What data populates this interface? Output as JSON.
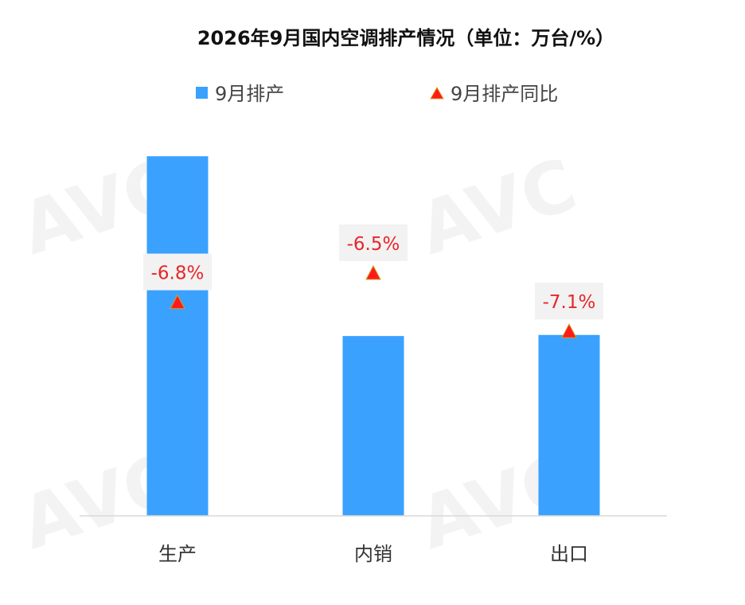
{
  "chart_data": {
    "type": "bar",
    "title": "2026年9月国内空调排产情况（单位：万台/%）",
    "categories": [
      "生产",
      "内销",
      "出口"
    ],
    "series": [
      {
        "name": "9月排产",
        "type": "bar",
        "values": [
          1620,
          810,
          815
        ]
      },
      {
        "name": "9月排产同比",
        "type": "marker",
        "values": [
          -6.8,
          -6.5,
          -7.1
        ],
        "labels": [
          "-6.8%",
          "-6.5%",
          "-7.1%"
        ]
      }
    ],
    "ylim": [
      0,
      1750
    ],
    "ylim_secondary": [
      -9,
      -5
    ],
    "grid": false,
    "legend_position": "top",
    "colors": {
      "bar": "#3aa1ff",
      "marker": "#ff1a1a",
      "marker_edge": "#d0a020",
      "label": "#e8262a",
      "label_bg": "#f2f2f2",
      "axis": "#d9d9d9"
    }
  }
}
